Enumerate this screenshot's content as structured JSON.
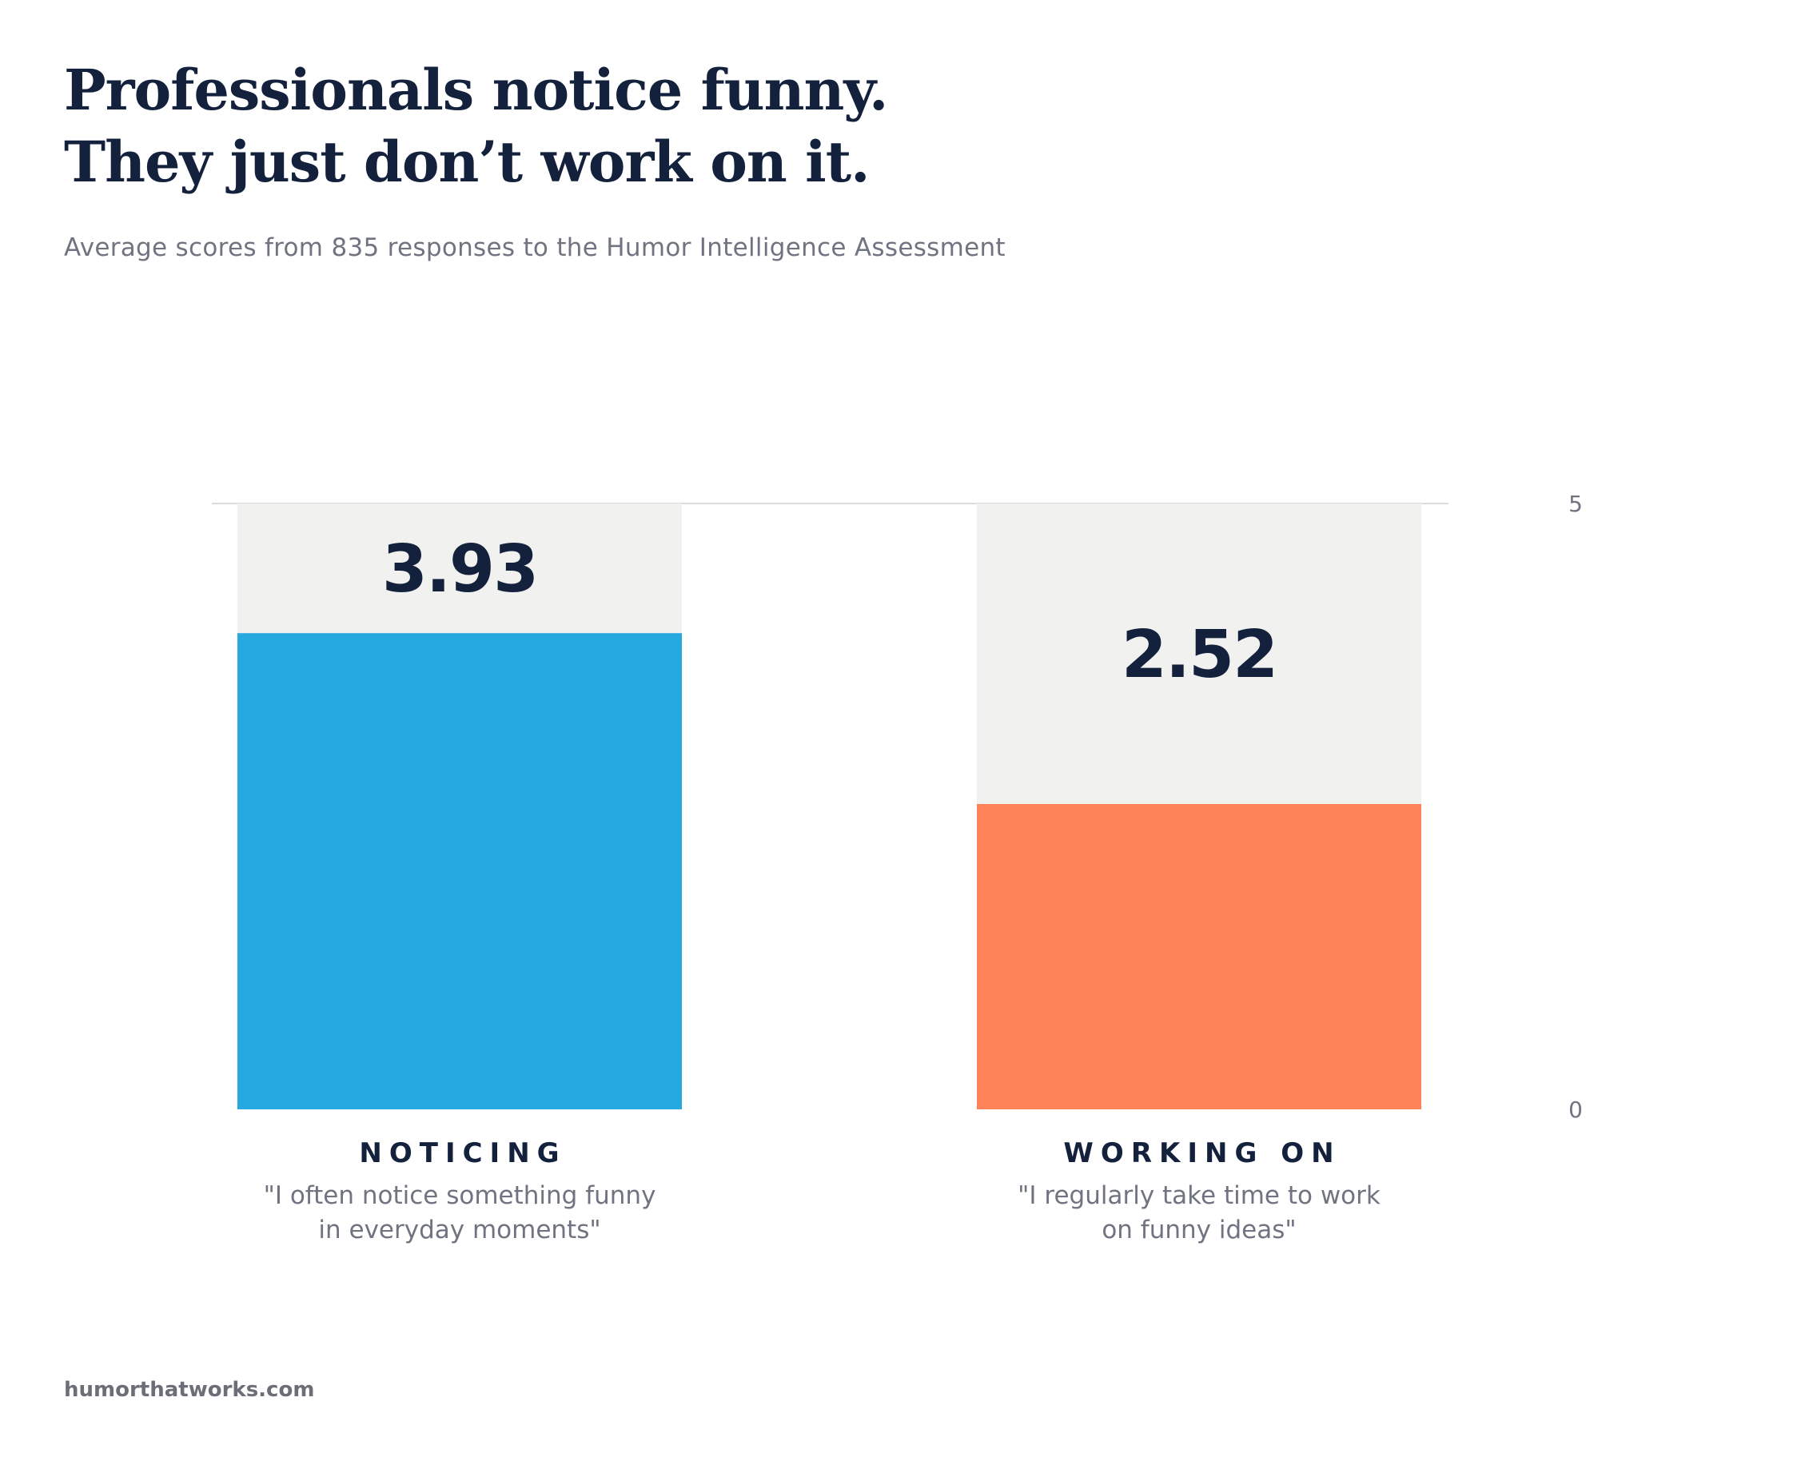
{
  "title_lines": [
    "Professionals notice funny.",
    "They just don’t work on it."
  ],
  "subtitle": "Average scores from 835 responses to the Humor Intelligence Assessment",
  "footer": "humorthatworks.com",
  "colors": {
    "noticing": "#25a9e0",
    "working_on": "#ff8358",
    "track": "#f1f1ef",
    "text_dark": "#13213d",
    "text_muted": "#707380",
    "axis_line": "#dcdcdc"
  },
  "chart_data": {
    "type": "bar",
    "categories": [
      "NOTICING",
      "WORKING ON"
    ],
    "descriptions": [
      [
        "\"I often notice something funny",
        "in everyday moments\""
      ],
      [
        "\"I regularly take time to work",
        "on funny ideas\""
      ]
    ],
    "values": [
      3.93,
      2.52
    ],
    "value_labels": [
      "3.93",
      "2.52"
    ],
    "ylim": [
      0,
      5
    ],
    "yticks": [
      5,
      0
    ],
    "ytick_labels": [
      "5",
      "0"
    ],
    "grid": false
  }
}
